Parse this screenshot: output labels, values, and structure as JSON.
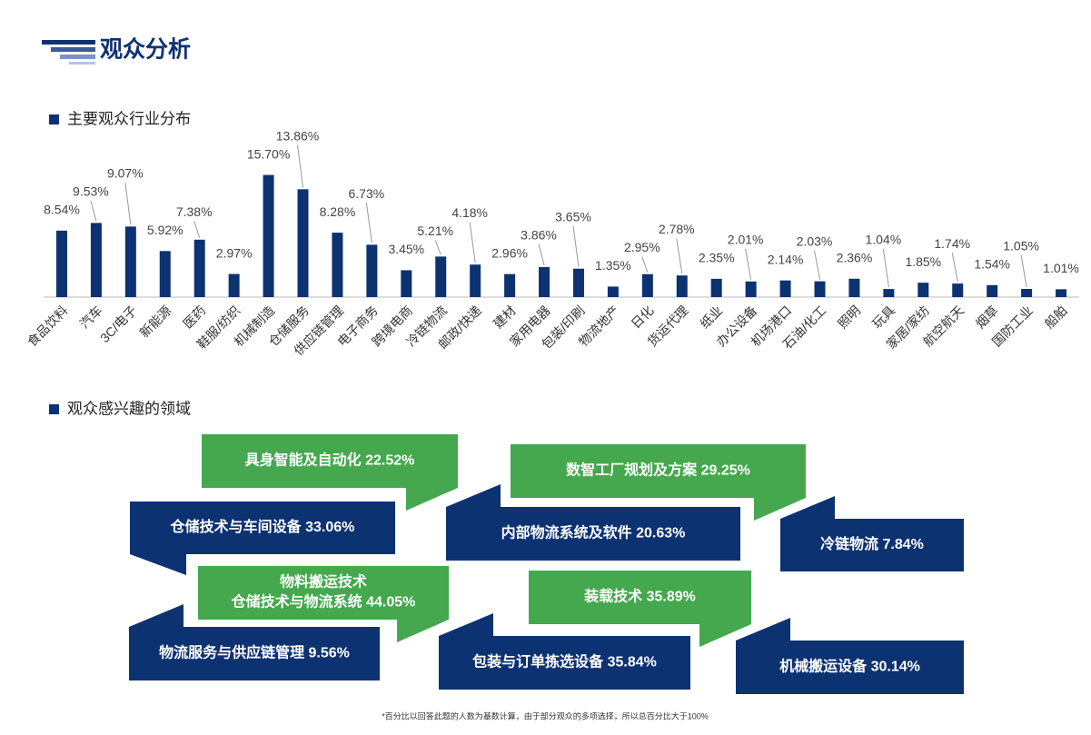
{
  "header": {
    "title": "观众分析"
  },
  "chart_data": {
    "type": "bar",
    "title": "主要观众行业分布",
    "categories": [
      "食品饮料",
      "汽车",
      "3C/电子",
      "新能源",
      "医药",
      "鞋服/纺织",
      "机械制造",
      "仓储服务",
      "供应链管理",
      "电子商务",
      "跨境电商",
      "冷链物流",
      "邮政/快递",
      "建材",
      "家用电器",
      "包装/印刷",
      "物流地产",
      "日化",
      "货运代理",
      "纸业",
      "办公设备",
      "机场港口",
      "石油/化工",
      "照明",
      "玩具",
      "家居/家纺",
      "航空航天",
      "烟草",
      "国防工业",
      "船舶"
    ],
    "values": [
      8.54,
      9.53,
      9.07,
      5.92,
      7.38,
      2.97,
      15.7,
      13.86,
      8.28,
      6.73,
      3.45,
      5.21,
      4.18,
      2.96,
      3.86,
      3.65,
      1.35,
      2.95,
      2.78,
      2.35,
      2.01,
      2.14,
      2.03,
      2.36,
      1.04,
      1.85,
      1.74,
      1.54,
      1.05,
      1.01
    ],
    "value_labels": [
      "8.54%",
      "9.53%",
      "9.07%",
      "5.92%",
      "7.38%",
      "2.97%",
      "15.70%",
      "13.86%",
      "8.28%",
      "6.73%",
      "3.45%",
      "5.21%",
      "4.18%",
      "2.96%",
      "3.86%",
      "3.65%",
      "1.35%",
      "2.95%",
      "2.78%",
      "2.35%",
      "2.01%",
      "2.14%",
      "2.03%",
      "2.36%",
      "1.04%",
      "1.85%",
      "1.74%",
      "1.54%",
      "1.05%",
      "1.01%"
    ],
    "color": "#0d3272",
    "ylim": [
      0,
      16
    ]
  },
  "interests": {
    "title": "观众感兴趣的领域",
    "items": [
      {
        "lines": [
          "具身智能及自动化 22.52%"
        ],
        "color": "#45a84e"
      },
      {
        "lines": [
          "仓储技术与车间设备 33.06%"
        ],
        "color": "#0d3272"
      },
      {
        "lines": [
          "数智工厂规划及方案 29.25%"
        ],
        "color": "#45a84e"
      },
      {
        "lines": [
          "内部物流系统及软件 20.63%"
        ],
        "color": "#0d3272"
      },
      {
        "lines": [
          "冷链物流 7.84%"
        ],
        "color": "#0d3272"
      },
      {
        "lines": [
          "物料搬运技术",
          "仓储技术与物流系统  44.05%"
        ],
        "color": "#45a84e"
      },
      {
        "lines": [
          "装载技术  35.89%"
        ],
        "color": "#45a84e"
      },
      {
        "lines": [
          "物流服务与供应链管理 9.56%"
        ],
        "color": "#0d3272"
      },
      {
        "lines": [
          "包装与订单拣选设备  35.84%"
        ],
        "color": "#0d3272"
      },
      {
        "lines": [
          "机械搬运设备 30.14%"
        ],
        "color": "#0d3272"
      }
    ]
  },
  "footnote": "*百分比以回答此题的人数为基数计算，由于部分观众的多项选择，所以总百分比大于100%"
}
